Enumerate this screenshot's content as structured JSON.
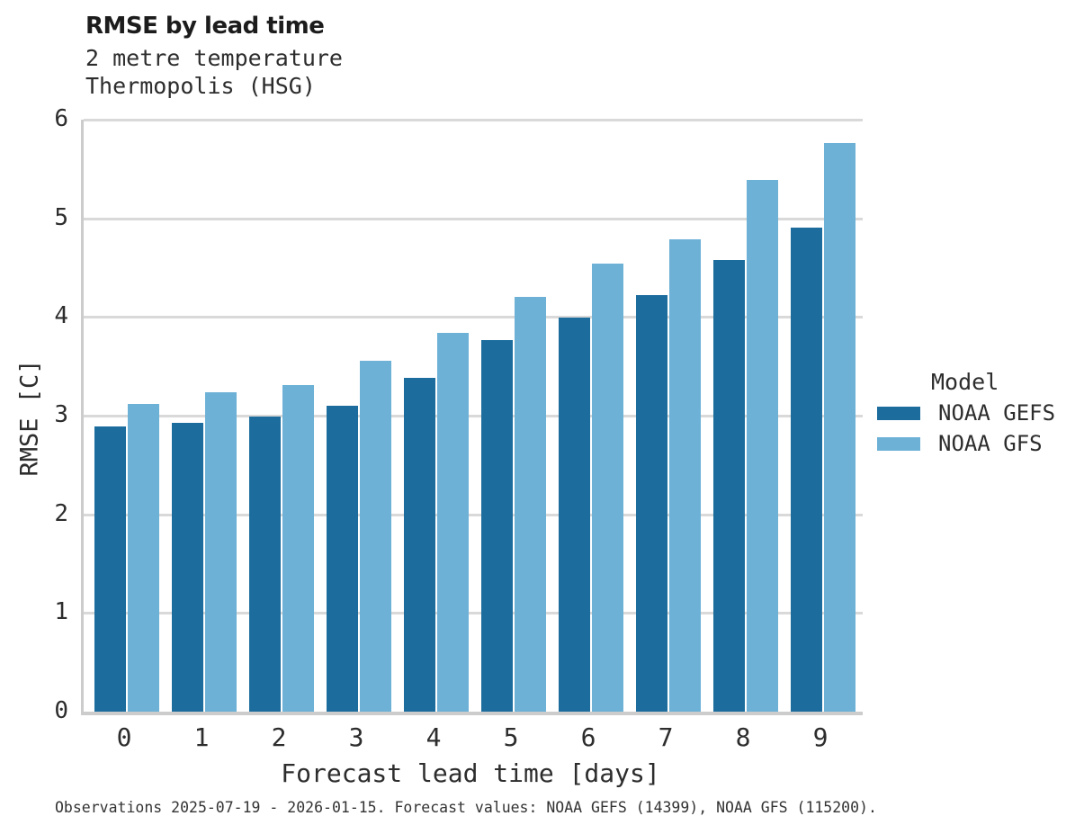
{
  "title": "RMSE by lead time",
  "subtitle_line1": "2 metre temperature",
  "subtitle_line2": "Thermopolis (HSG)",
  "caption": "Observations 2025-07-19 - 2026-01-15. Forecast values: NOAA GEFS (14399), NOAA GFS (115200).",
  "legend": {
    "title": "Model",
    "entries": [
      {
        "label": "NOAA GEFS",
        "color": "#1c6d9d"
      },
      {
        "label": "NOAA GFS",
        "color": "#6db1d7"
      }
    ]
  },
  "colors": {
    "grid": "#d9d9d9",
    "spine": "#cccccc",
    "text": "#2d2d2d"
  },
  "chart_data": {
    "type": "bar",
    "title": "RMSE by lead time",
    "subtitle": [
      "2 metre temperature",
      "Thermopolis (HSG)"
    ],
    "xlabel": "Forecast lead time [days]",
    "ylabel": "RMSE [C]",
    "categories": [
      "0",
      "1",
      "2",
      "3",
      "4",
      "5",
      "6",
      "7",
      "8",
      "9"
    ],
    "series": [
      {
        "name": "NOAA GEFS",
        "color": "#1c6d9d",
        "values": [
          2.89,
          2.93,
          2.99,
          3.1,
          3.38,
          3.77,
          3.99,
          4.22,
          4.58,
          4.91
        ]
      },
      {
        "name": "NOAA GFS",
        "color": "#6db1d7",
        "values": [
          3.12,
          3.24,
          3.31,
          3.56,
          3.84,
          4.2,
          4.54,
          4.79,
          5.39,
          5.76
        ]
      }
    ],
    "ylim": [
      0,
      6
    ],
    "yticks": [
      0,
      1,
      2,
      3,
      4,
      5,
      6
    ],
    "grid": "horizontal",
    "legend_position": "right",
    "legend_title": "Model"
  }
}
